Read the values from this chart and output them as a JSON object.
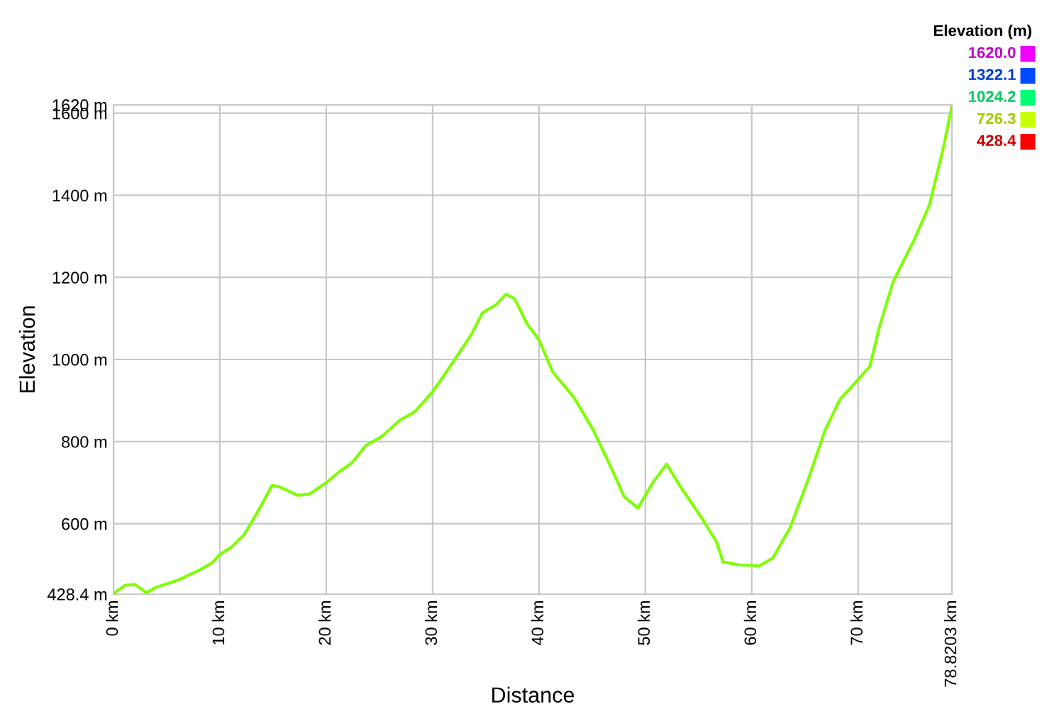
{
  "chart_data": {
    "type": "line",
    "xlabel": "Distance",
    "ylabel": "Elevation",
    "clabel": "Elevation (m)",
    "cticks": [
      {
        "value": 1620.0,
        "label": "1620.0"
      },
      {
        "value": 1322.1,
        "label": "1322.1"
      },
      {
        "value": 1024.2,
        "label": "1024.2"
      },
      {
        "value": 726.3,
        "label": "726.3"
      },
      {
        "value": 428.4,
        "label": "428.4"
      }
    ],
    "x": [
      0,
      1.1,
      2,
      3.1,
      4,
      6,
      8,
      9.3,
      10,
      11.1,
      12.3,
      13.6,
      14.9,
      15.6,
      17.3,
      18.4,
      20,
      21.3,
      22.4,
      23.7,
      25.3,
      26.9,
      28.3,
      30,
      32,
      33.6,
      34.7,
      36,
      36.9,
      37.7,
      38.9,
      40,
      41.3,
      43.3,
      45.1,
      46.7,
      48,
      49.3,
      50.7,
      52,
      53.3,
      55.3,
      56.7,
      57.3,
      58.7,
      60.7,
      62,
      63.6,
      65.3,
      66.9,
      68.3,
      69.3,
      71.1,
      72,
      73.3,
      75.3,
      76.7,
      78,
      78.82
    ],
    "series": [
      {
        "values": [
          430,
          450,
          452,
          432,
          445,
          462,
          486,
          505,
          525,
          543,
          574,
          631,
          693,
          690,
          669,
          672,
          700,
          728,
          748,
          790,
          814,
          852,
          872,
          921,
          997,
          1059,
          1114,
          1134,
          1159,
          1148,
          1086,
          1048,
          969,
          907,
          828,
          741,
          666,
          638,
          700,
          745,
          690,
          614,
          555,
          507,
          500,
          497,
          517,
          590,
          707,
          828,
          903,
          931,
          983,
          1079,
          1190,
          1293,
          1376,
          1514,
          1618
        ]
      }
    ],
    "xlim": [
      0,
      78.8203
    ],
    "xticks": [
      {
        "value": 0,
        "label": "0 km"
      },
      {
        "value": 10,
        "label": "10 km"
      },
      {
        "value": 20,
        "label": "20 km"
      },
      {
        "value": 30,
        "label": "30 km"
      },
      {
        "value": 40,
        "label": "40 km"
      },
      {
        "value": 50,
        "label": "50 km"
      },
      {
        "value": 60,
        "label": "60 km"
      },
      {
        "value": 70,
        "label": "70 km"
      },
      {
        "value": 78.8203,
        "label": "78.8203 km"
      }
    ],
    "ylim": [
      428.4,
      1620
    ],
    "yticks": [
      {
        "value": 428.4,
        "label": "428.4 m"
      },
      {
        "value": 600,
        "label": "600 m"
      },
      {
        "value": 800,
        "label": "800 m"
      },
      {
        "value": 1000,
        "label": "1000 m"
      },
      {
        "value": 1200,
        "label": "1200 m"
      },
      {
        "value": 1400,
        "label": "1400 m"
      },
      {
        "value": 1600,
        "label": "1600 m"
      },
      {
        "value": 1620,
        "label": "1620 m"
      }
    ],
    "grid": true
  }
}
